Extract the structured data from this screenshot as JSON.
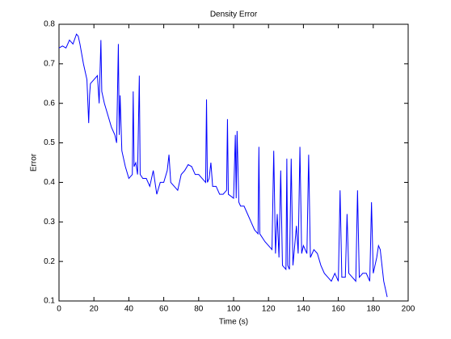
{
  "chart_data": {
    "type": "line",
    "title": "Density Error",
    "x_label": "Time (s)",
    "y_label": "Error",
    "xlim": [
      0,
      200
    ],
    "ylim": [
      0.1,
      0.8
    ],
    "xticks": [
      0,
      20,
      40,
      60,
      80,
      100,
      120,
      140,
      160,
      180,
      200
    ],
    "yticks": [
      0.1,
      0.2,
      0.3,
      0.4,
      0.5,
      0.6,
      0.7,
      0.8
    ],
    "x": [
      0,
      2,
      4,
      6,
      8,
      10,
      11,
      12,
      14,
      15,
      16,
      17,
      17.5,
      18,
      20,
      22,
      23,
      24,
      24.5,
      26,
      28,
      30,
      32,
      33,
      34,
      34.5,
      35,
      36,
      38,
      40,
      42,
      42.5,
      43,
      44,
      45,
      46,
      46.5,
      48,
      50,
      52,
      54,
      56,
      58,
      60,
      62,
      63,
      64,
      66,
      68,
      70,
      72,
      74,
      76,
      78,
      80,
      82,
      84,
      84.5,
      85,
      86,
      87,
      88,
      90,
      92,
      94,
      96,
      96.5,
      97,
      100,
      101,
      101.5,
      102,
      103,
      104,
      106,
      108,
      110,
      112,
      114,
      114.5,
      115,
      118,
      120,
      122,
      123,
      124,
      125,
      126,
      127,
      128,
      130,
      130.5,
      131,
      132,
      133,
      134,
      136,
      137,
      138,
      139,
      140,
      142,
      143,
      144,
      146,
      148,
      150,
      152,
      154,
      156,
      158,
      160,
      161,
      162,
      164,
      165,
      166,
      168,
      170,
      171,
      172,
      174,
      176,
      178,
      179,
      180,
      182,
      183,
      184,
      186,
      188
    ],
    "series": [
      {
        "name": "Error",
        "color": "#0000ff",
        "values": [
          0.74,
          0.745,
          0.74,
          0.76,
          0.75,
          0.775,
          0.77,
          0.75,
          0.7,
          0.68,
          0.66,
          0.55,
          0.62,
          0.65,
          0.66,
          0.67,
          0.6,
          0.76,
          0.63,
          0.6,
          0.57,
          0.54,
          0.52,
          0.5,
          0.75,
          0.52,
          0.62,
          0.48,
          0.44,
          0.41,
          0.42,
          0.63,
          0.44,
          0.45,
          0.42,
          0.67,
          0.42,
          0.41,
          0.41,
          0.39,
          0.43,
          0.37,
          0.4,
          0.4,
          0.43,
          0.47,
          0.4,
          0.39,
          0.38,
          0.42,
          0.43,
          0.445,
          0.44,
          0.42,
          0.42,
          0.41,
          0.4,
          0.61,
          0.4,
          0.41,
          0.45,
          0.39,
          0.39,
          0.37,
          0.37,
          0.38,
          0.56,
          0.37,
          0.36,
          0.52,
          0.36,
          0.53,
          0.35,
          0.34,
          0.34,
          0.32,
          0.3,
          0.28,
          0.27,
          0.49,
          0.27,
          0.25,
          0.24,
          0.23,
          0.48,
          0.22,
          0.32,
          0.21,
          0.43,
          0.19,
          0.18,
          0.46,
          0.19,
          0.18,
          0.46,
          0.19,
          0.29,
          0.22,
          0.49,
          0.22,
          0.24,
          0.22,
          0.47,
          0.21,
          0.23,
          0.22,
          0.19,
          0.17,
          0.16,
          0.15,
          0.17,
          0.15,
          0.38,
          0.16,
          0.16,
          0.32,
          0.17,
          0.16,
          0.15,
          0.38,
          0.16,
          0.17,
          0.17,
          0.15,
          0.35,
          0.17,
          0.21,
          0.24,
          0.23,
          0.15,
          0.11
        ]
      }
    ]
  }
}
